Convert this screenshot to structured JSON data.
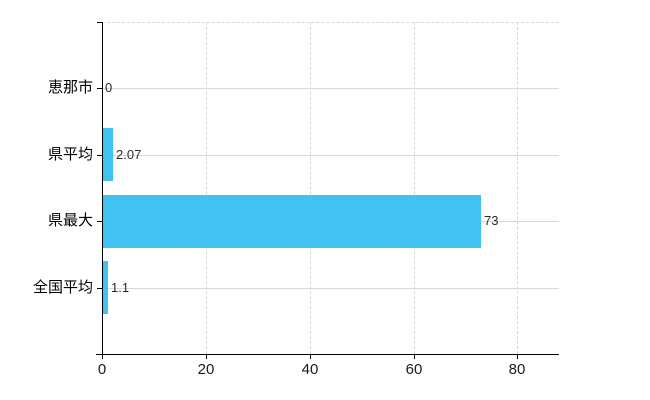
{
  "chart": {
    "title": "",
    "bar_color": "#41c2f0",
    "grid_color": "#d4dad4",
    "axis_color": "#000000",
    "tick_label_color": "#1a1a1a",
    "category_label_color": "#000000",
    "value_label_color": "#2b2b2b",
    "background_color": "#ffffff"
  },
  "chart_data": {
    "type": "bar",
    "orientation": "horizontal",
    "categories": [
      "恵那市",
      "県平均",
      "県最大",
      "全国平均"
    ],
    "values": [
      0,
      2.07,
      73,
      1.1
    ],
    "value_labels": [
      "0",
      "2.07",
      "73",
      "1.1"
    ],
    "x_ticks": [
      0,
      20,
      40,
      60,
      80
    ],
    "x_tick_labels": [
      "0",
      "20",
      "40",
      "60",
      "80"
    ],
    "xlim": [
      0,
      88
    ],
    "grid": true,
    "legend": false,
    "xlabel": "",
    "ylabel": ""
  }
}
